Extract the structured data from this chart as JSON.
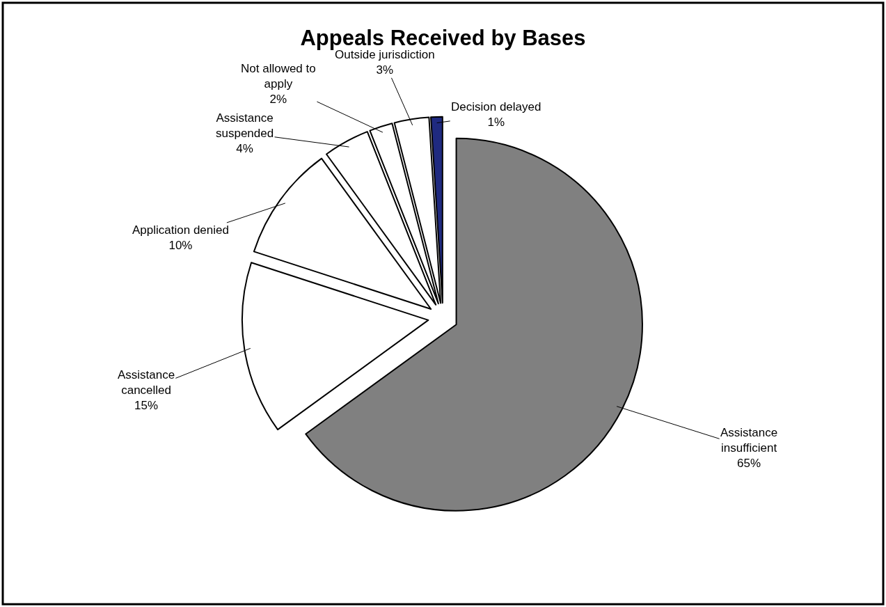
{
  "chart_data": {
    "type": "pie",
    "title": "Appeals Received by Bases",
    "categories": [
      "Assistance insufficient",
      "Assistance cancelled",
      "Application denied",
      "Assistance suspended",
      "Not allowed to apply",
      "Outside jurisdiction",
      "Decision delayed"
    ],
    "values": [
      65,
      15,
      10,
      4,
      2,
      3,
      1
    ],
    "value_labels": [
      "65%",
      "15%",
      "10%",
      "4%",
      "2%",
      "3%",
      "1%"
    ],
    "colors": [
      "#808080",
      "#ffffff",
      "#ffffff",
      "#ffffff",
      "#ffffff",
      "#ffffff",
      "#1f2a80"
    ],
    "legend": false
  }
}
